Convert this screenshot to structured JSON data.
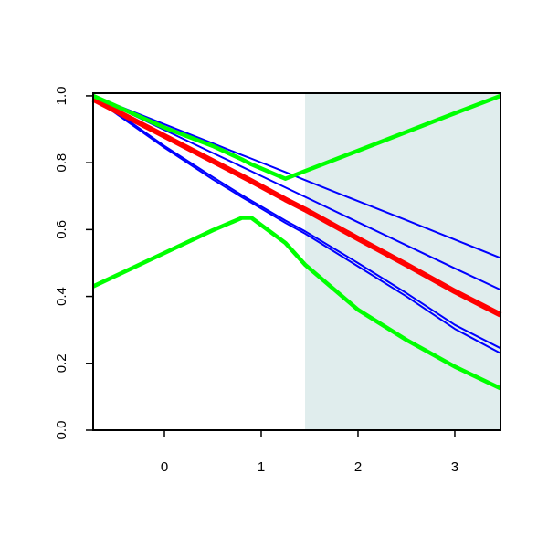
{
  "chart_data": {
    "type": "line",
    "x": [
      -0.736,
      0,
      0.5,
      0.8,
      0.9,
      1.25,
      1.453,
      2,
      2.5,
      3,
      3.472
    ],
    "series": [
      {
        "color": "#0000ff",
        "width": 2,
        "values": [
          1.0,
          0.915,
          0.858,
          0.823,
          0.812,
          0.772,
          0.748,
          0.685,
          0.628,
          0.57,
          0.515
        ]
      },
      {
        "color": "#0000ff",
        "width": 2,
        "values": [
          1.0,
          0.898,
          0.829,
          0.788,
          0.774,
          0.726,
          0.698,
          0.622,
          0.553,
          0.484,
          0.42
        ]
      },
      {
        "color": "#0000ff",
        "width": 2,
        "values": [
          1.0,
          0.85,
          0.757,
          0.703,
          0.686,
          0.627,
          0.595,
          0.5,
          0.41,
          0.315,
          0.245
        ]
      },
      {
        "color": "#0000ff",
        "width": 2,
        "values": [
          0.995,
          0.845,
          0.75,
          0.697,
          0.68,
          0.62,
          0.588,
          0.49,
          0.4,
          0.303,
          0.23
        ]
      },
      {
        "color": "#ff0000",
        "width": 6,
        "values": [
          0.99,
          0.88,
          0.805,
          0.76,
          0.745,
          0.69,
          0.66,
          0.573,
          0.495,
          0.415,
          0.345
        ]
      },
      {
        "color": "#00ff00",
        "width": 4.5,
        "values": [
          1.0,
          0.905,
          0.85,
          0.81,
          0.795,
          0.752,
          0.775,
          0.836,
          0.892,
          0.948,
          1.0
        ]
      },
      {
        "color": "#00ff00",
        "width": 4.5,
        "values": [
          0.43,
          0.53,
          0.598,
          0.635,
          0.635,
          0.56,
          0.495,
          0.36,
          0.27,
          0.19,
          0.125
        ]
      }
    ],
    "shaded_region": {
      "x": [
        1.453,
        3.472
      ],
      "color": "#e0eded"
    },
    "xlim": [
      -0.736,
      3.472
    ],
    "xticks": [
      0,
      1,
      2,
      3
    ],
    "ylim": [
      0,
      1.008
    ],
    "yticks": [
      {
        "value": 0,
        "label": "0.0"
      },
      0.2,
      0.4,
      0.6,
      0.8,
      {
        "value": 1,
        "label": "1.0"
      }
    ]
  }
}
